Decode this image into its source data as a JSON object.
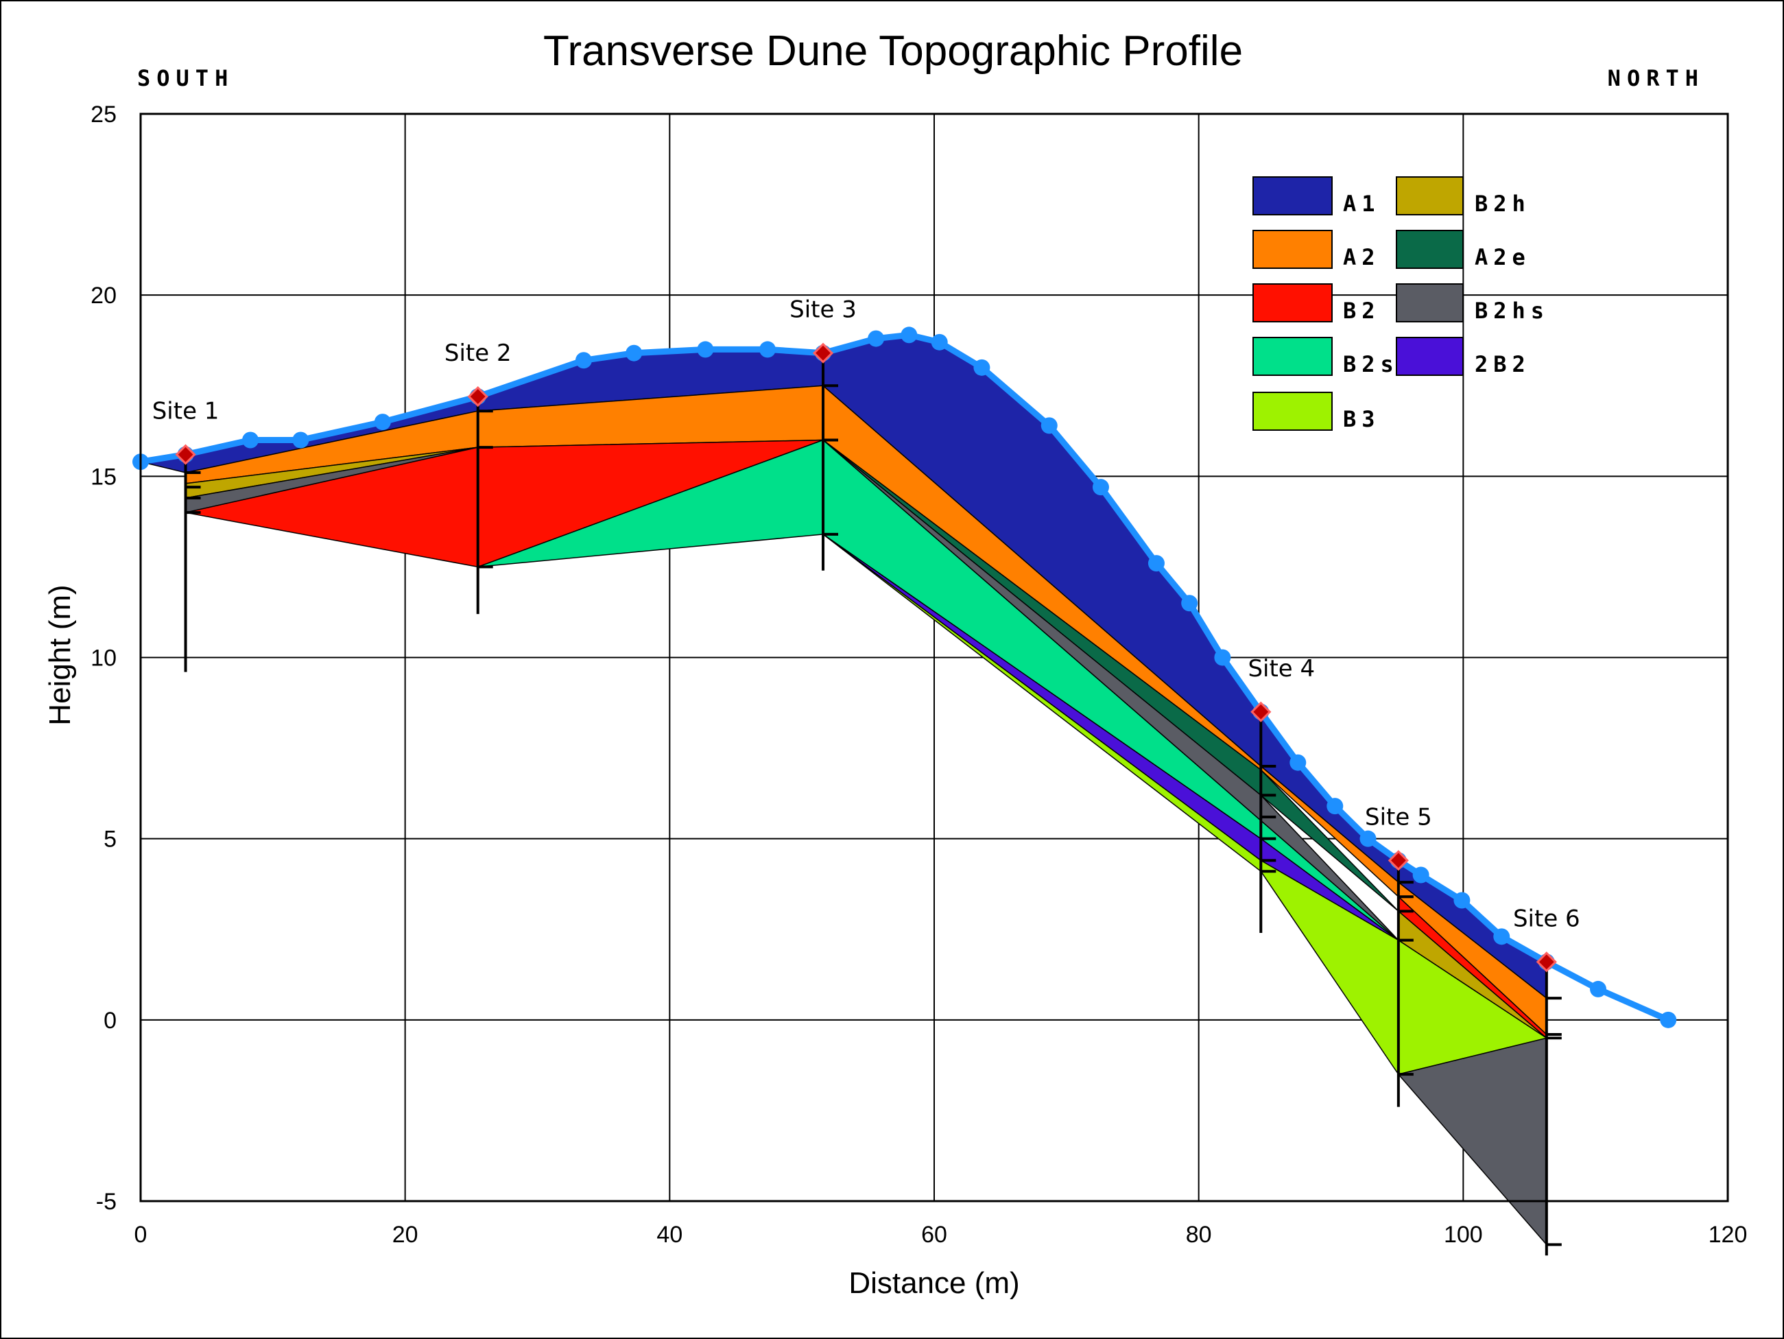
{
  "chart_data": {
    "type": "area",
    "title": "Transverse Dune Topographic Profile",
    "xlabel": "Distance (m)",
    "ylabel": "Height (m)",
    "xlim": [
      0,
      120
    ],
    "ylim": [
      -5,
      25
    ],
    "x_ticks": [
      0,
      20,
      40,
      60,
      80,
      100,
      120
    ],
    "y_ticks": [
      -5,
      0,
      5,
      10,
      15,
      20,
      25
    ],
    "grid": true,
    "legend_position": "top-right",
    "direction_labels": {
      "left": "SOUTH",
      "right": "NORTH"
    },
    "surface_profile": {
      "color": "#1e90ff",
      "points": [
        [
          0,
          15.4
        ],
        [
          3.4,
          15.6
        ],
        [
          8.3,
          16.0
        ],
        [
          12.1,
          16.0
        ],
        [
          18.3,
          16.5
        ],
        [
          25.5,
          17.2
        ],
        [
          33.5,
          18.2
        ],
        [
          37.3,
          18.4
        ],
        [
          42.7,
          18.5
        ],
        [
          47.4,
          18.5
        ],
        [
          51.6,
          18.4
        ],
        [
          55.6,
          18.8
        ],
        [
          58.1,
          18.9
        ],
        [
          60.4,
          18.7
        ],
        [
          63.6,
          18.0
        ],
        [
          68.7,
          16.4
        ],
        [
          72.6,
          14.7
        ],
        [
          76.8,
          12.6
        ],
        [
          79.3,
          11.5
        ],
        [
          81.8,
          10.0
        ],
        [
          84.7,
          8.5
        ],
        [
          87.5,
          7.1
        ],
        [
          90.3,
          5.9
        ],
        [
          92.8,
          5.0
        ],
        [
          95.1,
          4.4
        ],
        [
          96.8,
          4.0
        ],
        [
          99.9,
          3.3
        ],
        [
          102.9,
          2.3
        ],
        [
          106.3,
          1.6
        ],
        [
          110.2,
          0.85
        ],
        [
          115.5,
          0.0
        ]
      ]
    },
    "sites": [
      {
        "name": "Site 1",
        "x": 3.4,
        "surface": 15.6,
        "boring_bottom": 9.6,
        "contacts": [
          15.1,
          14.7,
          14.4,
          14.0
        ]
      },
      {
        "name": "Site 2",
        "x": 25.5,
        "surface": 17.2,
        "boring_bottom": 11.2,
        "contacts": [
          16.8,
          15.8,
          12.5
        ]
      },
      {
        "name": "Site 3",
        "x": 51.6,
        "surface": 18.4,
        "boring_bottom": 12.4,
        "contacts": [
          17.5,
          16.0,
          13.4
        ]
      },
      {
        "name": "Site 4",
        "x": 84.7,
        "surface": 8.5,
        "boring_bottom": 2.4,
        "contacts": [
          7.0,
          6.2,
          5.6,
          5.0,
          4.4,
          4.1
        ]
      },
      {
        "name": "Site 5",
        "x": 95.1,
        "surface": 4.4,
        "boring_bottom": -2.4,
        "contacts": [
          3.8,
          3.4,
          3.0,
          2.2,
          -1.5
        ]
      },
      {
        "name": "Site 6",
        "x": 106.3,
        "surface": 1.6,
        "boring_bottom": -6.5,
        "contacts": [
          0.6,
          -0.4,
          -0.5,
          -6.2
        ]
      }
    ],
    "series": [
      {
        "name": "A1",
        "color": "#1e24a8",
        "polygon": [
          [
            0,
            15.4
          ],
          [
            3.4,
            15.6
          ],
          [
            8.3,
            16.0
          ],
          [
            12.1,
            16.0
          ],
          [
            18.3,
            16.5
          ],
          [
            25.5,
            17.2
          ],
          [
            33.5,
            18.2
          ],
          [
            37.3,
            18.4
          ],
          [
            42.7,
            18.5
          ],
          [
            47.4,
            18.5
          ],
          [
            51.6,
            18.4
          ],
          [
            55.6,
            18.8
          ],
          [
            58.1,
            18.9
          ],
          [
            60.4,
            18.7
          ],
          [
            63.6,
            18.0
          ],
          [
            68.7,
            16.4
          ],
          [
            72.6,
            14.7
          ],
          [
            76.8,
            12.6
          ],
          [
            79.3,
            11.5
          ],
          [
            81.8,
            10.0
          ],
          [
            84.7,
            8.5
          ],
          [
            87.5,
            7.1
          ],
          [
            90.3,
            5.9
          ],
          [
            92.8,
            5.0
          ],
          [
            95.1,
            4.4
          ],
          [
            96.8,
            4.0
          ],
          [
            99.9,
            3.3
          ],
          [
            102.9,
            2.3
          ],
          [
            106.3,
            1.6
          ],
          [
            106.3,
            0.6
          ],
          [
            95.1,
            3.8
          ],
          [
            84.7,
            7.0
          ],
          [
            51.6,
            17.5
          ],
          [
            25.5,
            16.8
          ],
          [
            3.4,
            15.1
          ]
        ]
      },
      {
        "name": "A2",
        "color": "#ff8000",
        "polygon": [
          [
            3.4,
            15.1
          ],
          [
            25.5,
            16.8
          ],
          [
            51.6,
            17.5
          ],
          [
            84.7,
            7.0
          ],
          [
            95.1,
            3.8
          ],
          [
            106.3,
            0.6
          ],
          [
            106.3,
            -0.4
          ],
          [
            95.1,
            3.4
          ],
          [
            84.7,
            6.9
          ],
          [
            51.6,
            16.0
          ],
          [
            25.5,
            15.8
          ],
          [
            3.4,
            14.8
          ]
        ]
      },
      {
        "name": "B2h",
        "color": "#bfa600",
        "polygon": [
          [
            3.4,
            14.8
          ],
          [
            25.5,
            15.8
          ],
          [
            3.4,
            14.4
          ]
        ]
      },
      {
        "name": "B2hs",
        "color": "#5a5c64",
        "polygon": [
          [
            3.4,
            14.4
          ],
          [
            25.5,
            15.8
          ],
          [
            3.4,
            14.0
          ]
        ]
      },
      {
        "name": "B2",
        "color": "#ff1000",
        "polygon": [
          [
            3.4,
            14.0
          ],
          [
            25.5,
            15.8
          ],
          [
            51.6,
            16.0
          ],
          [
            25.5,
            12.5
          ]
        ]
      },
      {
        "name": "B2s",
        "color": "#00e08a",
        "polygon": [
          [
            25.5,
            12.5
          ],
          [
            51.6,
            16.0
          ],
          [
            51.6,
            13.4
          ]
        ]
      },
      {
        "name": "B2",
        "color": "#ff1000",
        "polygon": [
          [
            95.1,
            3.4
          ],
          [
            106.3,
            -0.4
          ],
          [
            106.3,
            -0.5
          ],
          [
            95.1,
            3.0
          ]
        ]
      },
      {
        "name": "A2e",
        "color": "#0a6a48",
        "polygon": [
          [
            51.6,
            16.0
          ],
          [
            84.7,
            6.9
          ],
          [
            95.1,
            3.0
          ],
          [
            84.7,
            6.2
          ]
        ]
      },
      {
        "name": "B2h",
        "color": "#bfa600",
        "polygon": [
          [
            95.1,
            3.0
          ],
          [
            106.3,
            -0.5
          ],
          [
            95.1,
            2.2
          ]
        ]
      },
      {
        "name": "B2hs",
        "color": "#5a5c64",
        "polygon": [
          [
            51.6,
            16.0
          ],
          [
            84.7,
            6.2
          ],
          [
            95.1,
            2.2
          ],
          [
            84.7,
            5.5
          ]
        ]
      },
      {
        "name": "B2s",
        "color": "#00e08a",
        "polygon": [
          [
            51.6,
            16.0
          ],
          [
            84.7,
            5.5
          ],
          [
            95.1,
            2.2
          ],
          [
            84.7,
            5.0
          ],
          [
            51.6,
            13.4
          ]
        ]
      },
      {
        "name": "2B2",
        "color": "#4a10d8",
        "polygon": [
          [
            51.6,
            13.4
          ],
          [
            84.7,
            5.0
          ],
          [
            95.1,
            2.2
          ],
          [
            84.7,
            4.4
          ]
        ]
      },
      {
        "name": "B3",
        "color": "#9ef200",
        "polygon": [
          [
            51.6,
            13.4
          ],
          [
            84.7,
            4.4
          ],
          [
            95.1,
            2.2
          ],
          [
            106.3,
            -0.5
          ],
          [
            95.1,
            -1.5
          ],
          [
            84.7,
            4.1
          ]
        ]
      },
      {
        "name": "B2hs",
        "color": "#5a5c64",
        "polygon": [
          [
            95.1,
            -1.5
          ],
          [
            106.3,
            -0.5
          ],
          [
            106.3,
            -6.2
          ]
        ]
      }
    ],
    "legend": [
      {
        "name": "A1",
        "label": "A1",
        "color": "#1e24a8"
      },
      {
        "name": "B2h",
        "label": "B2h",
        "color": "#bfa600"
      },
      {
        "name": "A2",
        "label": "A2",
        "color": "#ff8000"
      },
      {
        "name": "A2e",
        "label": "A2e",
        "color": "#0a6a48"
      },
      {
        "name": "B2",
        "label": "B2",
        "color": "#ff1000"
      },
      {
        "name": "B2hs",
        "label": "B2hs",
        "color": "#5a5c64"
      },
      {
        "name": "B2s",
        "label": "B2s",
        "color": "#00e08a"
      },
      {
        "name": "2B2",
        "label": "2B2",
        "color": "#4a10d8"
      },
      {
        "name": "B3",
        "label": "B3",
        "color": "#9ef200"
      }
    ]
  }
}
